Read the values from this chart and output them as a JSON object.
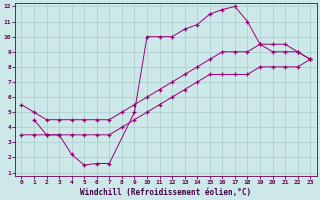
{
  "xlabel": "Windchill (Refroidissement éolien,°C)",
  "background_color": "#cce8e8",
  "grid_color": "#aacccc",
  "line_color": "#990077",
  "xlim": [
    -0.5,
    23.5
  ],
  "ylim": [
    1,
    12
  ],
  "xticks": [
    0,
    1,
    2,
    3,
    4,
    5,
    6,
    7,
    8,
    9,
    10,
    11,
    12,
    13,
    14,
    15,
    16,
    17,
    18,
    19,
    20,
    21,
    22,
    23
  ],
  "yticks": [
    1,
    2,
    3,
    4,
    5,
    6,
    7,
    8,
    9,
    10,
    11,
    12
  ],
  "line1_x": [
    1,
    2,
    3,
    4,
    5,
    6,
    7,
    9,
    10,
    11,
    12,
    13,
    14,
    15,
    16,
    17,
    18,
    19,
    20,
    21,
    22,
    23
  ],
  "line1_y": [
    4.5,
    3.5,
    3.5,
    2.2,
    1.5,
    1.6,
    1.6,
    5.0,
    10.0,
    10.0,
    10.0,
    10.5,
    10.8,
    11.5,
    11.8,
    12.0,
    11.0,
    9.5,
    9.0,
    9.0,
    9.0,
    8.5
  ],
  "line2_x": [
    0,
    1,
    2,
    3,
    4,
    5,
    6,
    7,
    8,
    9,
    10,
    11,
    12,
    13,
    14,
    15,
    16,
    17,
    18,
    19,
    20,
    21,
    22,
    23
  ],
  "line2_y": [
    5.5,
    5.0,
    4.5,
    4.5,
    4.5,
    4.5,
    4.5,
    4.5,
    5.0,
    5.5,
    6.0,
    6.5,
    7.0,
    7.5,
    8.0,
    8.5,
    9.0,
    9.0,
    9.0,
    9.5,
    9.5,
    9.5,
    9.0,
    8.5
  ],
  "line3_x": [
    0,
    1,
    2,
    3,
    4,
    5,
    6,
    7,
    8,
    9,
    10,
    11,
    12,
    13,
    14,
    15,
    16,
    17,
    18,
    19,
    20,
    21,
    22,
    23
  ],
  "line3_y": [
    3.5,
    3.5,
    3.5,
    3.5,
    3.5,
    3.5,
    3.5,
    3.5,
    4.0,
    4.5,
    5.0,
    5.5,
    6.0,
    6.5,
    7.0,
    7.5,
    7.5,
    7.5,
    7.5,
    8.0,
    8.0,
    8.0,
    8.0,
    8.5
  ]
}
